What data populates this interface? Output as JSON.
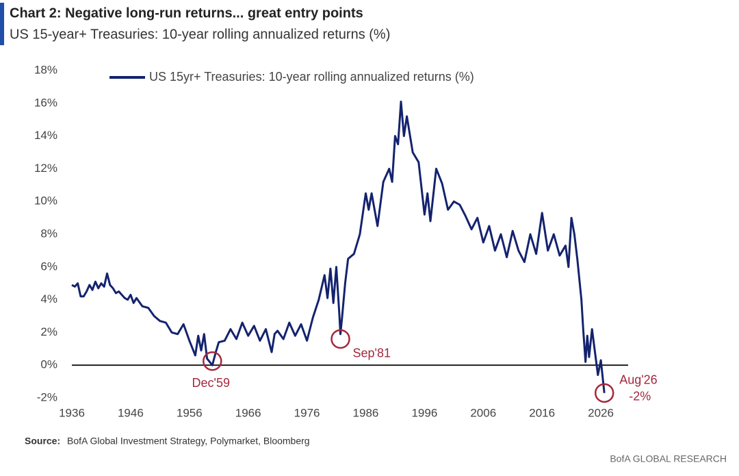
{
  "chart_data": {
    "type": "line",
    "title": "Chart 2: Negative long-run returns... great entry points",
    "subtitle": "US 15-year+ Treasuries: 10-year rolling annualized returns (%)",
    "source_label": "Source:",
    "source": "BofA Global Investment Strategy, Polymarket, Bloomberg",
    "footer": "BofA GLOBAL RESEARCH",
    "xlim": [
      1936,
      2031
    ],
    "xticks": [
      1936,
      1946,
      1956,
      1966,
      1976,
      1986,
      1996,
      2006,
      2016,
      2026
    ],
    "ylim": [
      -2,
      18
    ],
    "yticks": [
      {
        "value": -2,
        "label": "-2%"
      },
      {
        "value": 0,
        "label": "0%"
      },
      {
        "value": 2,
        "label": "2%"
      },
      {
        "value": 4,
        "label": "4%"
      },
      {
        "value": 6,
        "label": "6%"
      },
      {
        "value": 8,
        "label": "8%"
      },
      {
        "value": 10,
        "label": "10%"
      },
      {
        "value": 12,
        "label": "12%"
      },
      {
        "value": 14,
        "label": "14%"
      },
      {
        "value": 16,
        "label": "16%"
      },
      {
        "value": 18,
        "label": "18%"
      }
    ],
    "grid": false,
    "legend": "top",
    "x": [
      1936,
      1936.5,
      1937,
      1937.5,
      1938,
      1938.5,
      1939,
      1939.5,
      1940,
      1940.5,
      1941,
      1941.5,
      1942,
      1942.5,
      1943,
      1943.5,
      1944,
      1945,
      1945.5,
      1946,
      1946.5,
      1947,
      1948,
      1949,
      1950,
      1951,
      1952,
      1953,
      1954,
      1955,
      1956,
      1957,
      1957.5,
      1958,
      1958.5,
      1959,
      1959.9,
      1960.5,
      1961,
      1962,
      1963,
      1964,
      1965,
      1966,
      1967,
      1968,
      1969,
      1970,
      1970.5,
      1971,
      1972,
      1973,
      1974,
      1975,
      1976,
      1977,
      1978,
      1979,
      1979.5,
      1980,
      1980.5,
      1981,
      1981.5,
      1981.7,
      1982,
      1982.5,
      1983,
      1984,
      1985,
      1986,
      1986.5,
      1987,
      1988,
      1989,
      1990,
      1990.5,
      1991,
      1991.5,
      1992,
      1992.5,
      1993,
      1994,
      1995,
      1996,
      1996.5,
      1997,
      1998,
      1999,
      2000,
      2001,
      2002,
      2003,
      2004,
      2005,
      2006,
      2007,
      2008,
      2009,
      2010,
      2011,
      2012,
      2013,
      2014,
      2015,
      2016,
      2017,
      2018,
      2019,
      2020,
      2020.5,
      2021,
      2021.5,
      2022,
      2022.7,
      2023,
      2023.4,
      2023.7,
      2024,
      2024.5,
      2025,
      2025.5,
      2026,
      2026.6
    ],
    "series": [
      {
        "name": "US 15yr+ Treasuries: 10-year rolling annualized returns (%)",
        "color": "#14236e",
        "values": [
          4.9,
          4.8,
          5.0,
          4.2,
          4.2,
          4.5,
          4.9,
          4.6,
          5.1,
          4.7,
          5.0,
          4.8,
          5.6,
          4.9,
          4.7,
          4.4,
          4.5,
          4.1,
          4.0,
          4.3,
          3.8,
          4.1,
          3.6,
          3.5,
          3.0,
          2.7,
          2.6,
          2.0,
          1.9,
          2.5,
          1.5,
          0.6,
          1.8,
          0.9,
          1.9,
          0.4,
          0.0,
          0.8,
          1.4,
          1.5,
          2.2,
          1.6,
          2.6,
          1.8,
          2.4,
          1.5,
          2.2,
          0.8,
          1.9,
          2.1,
          1.6,
          2.6,
          1.8,
          2.5,
          1.5,
          2.9,
          4.0,
          5.5,
          4.1,
          5.9,
          3.8,
          6.0,
          3.2,
          1.9,
          3.0,
          5.0,
          6.5,
          6.8,
          8.0,
          10.5,
          9.5,
          10.5,
          8.5,
          11.2,
          12.0,
          11.2,
          14.0,
          13.5,
          16.1,
          14.0,
          15.2,
          13.0,
          12.4,
          9.2,
          10.5,
          8.8,
          12.0,
          11.1,
          9.5,
          10.0,
          9.8,
          9.1,
          8.3,
          9.0,
          7.5,
          8.5,
          7.0,
          8.0,
          6.6,
          8.2,
          7.0,
          6.3,
          8.0,
          6.8,
          9.3,
          7.0,
          8.0,
          6.7,
          7.3,
          6.0,
          9.0,
          8.0,
          6.5,
          4.0,
          2.2,
          0.2,
          1.8,
          0.5,
          2.2,
          0.8,
          -0.6,
          0.3,
          -1.7
        ]
      }
    ],
    "annotations": [
      {
        "label": "Dec'59",
        "x": 1959.9,
        "y": 0.25
      },
      {
        "label": "Sep'81",
        "x": 1981.7,
        "y": 1.6
      },
      {
        "label": "Aug'26",
        "value_label": "-2%",
        "x": 2026.6,
        "y": -1.7
      }
    ],
    "annotation_color": "#a3283c"
  }
}
